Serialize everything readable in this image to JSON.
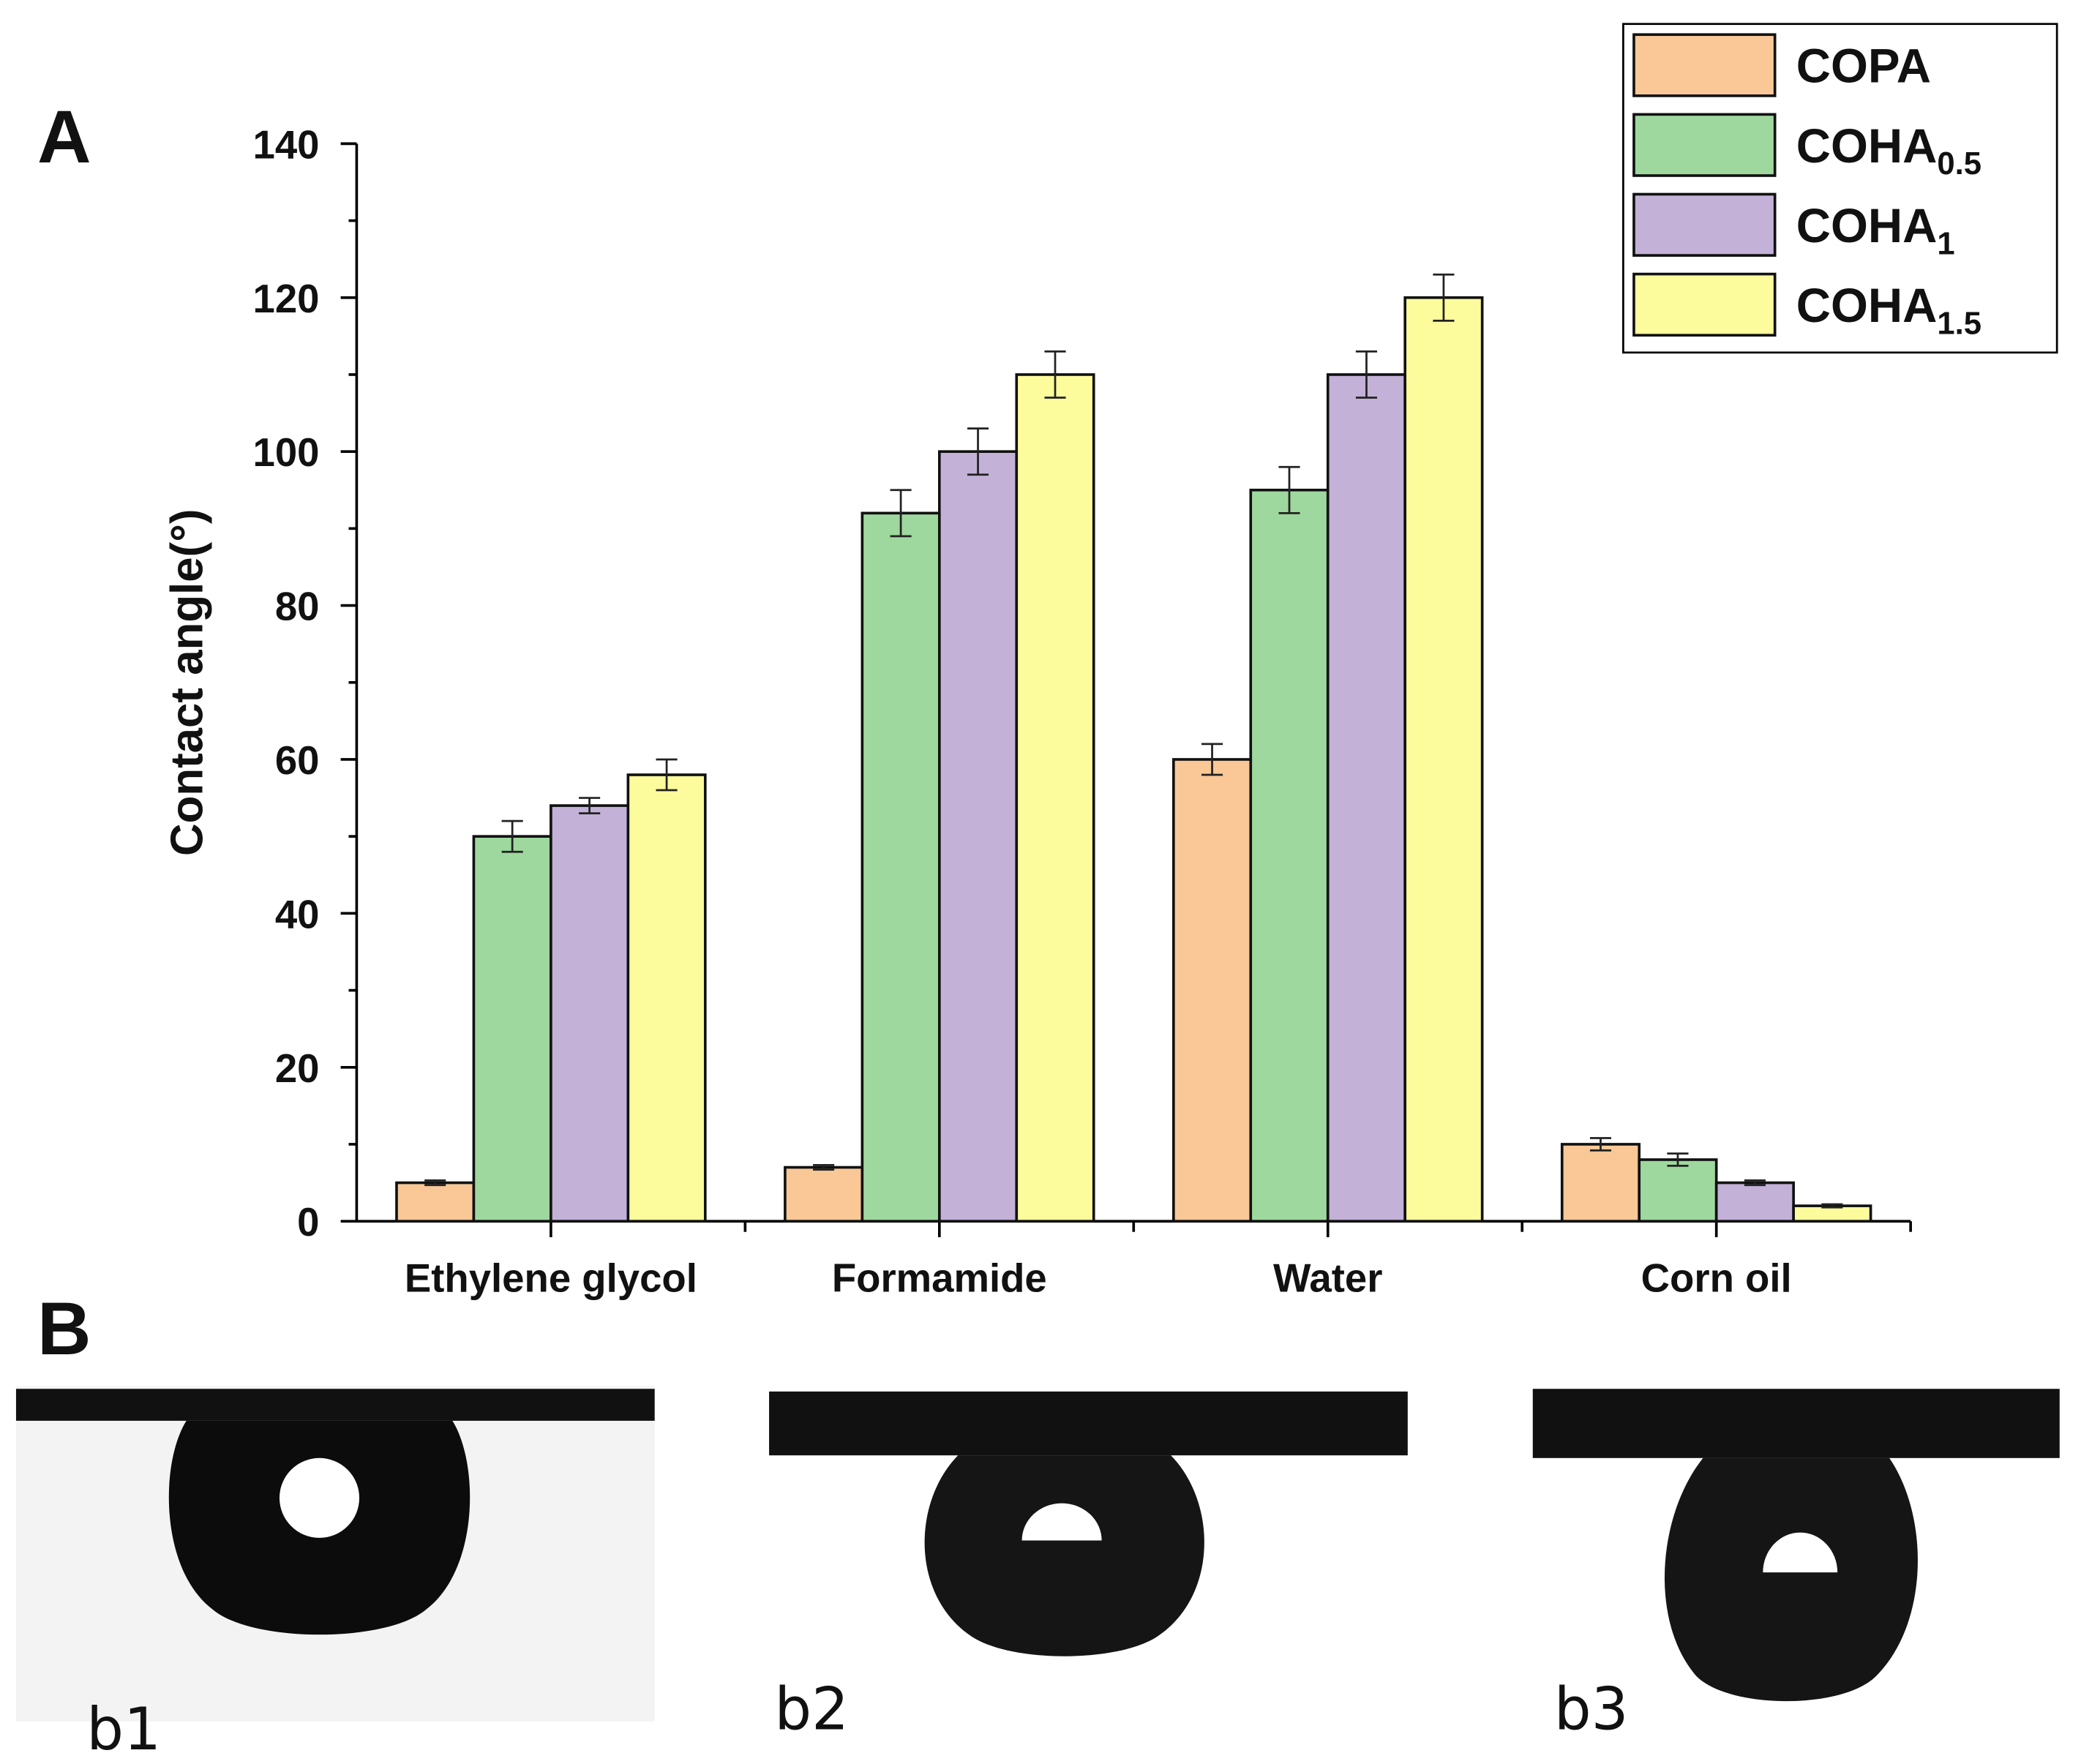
{
  "panel_labels": {
    "a": "A",
    "b": "B"
  },
  "chart_data": {
    "type": "bar",
    "title": "",
    "xlabel": "",
    "ylabel": "Contact angle(°)",
    "ylim": [
      0,
      140
    ],
    "yticks": [
      0,
      20,
      40,
      60,
      80,
      100,
      120,
      140
    ],
    "grid": false,
    "legend_position": "top-right",
    "categories": [
      "Ethylene glycol",
      "Formamide",
      "Water",
      "Corn oil"
    ],
    "series": [
      {
        "name": "COPA",
        "name_base": "COPA",
        "name_sub": "",
        "color": "#f9c896",
        "values": [
          5,
          7,
          60,
          10
        ],
        "errors": [
          0.3,
          0.3,
          2,
          0.8
        ]
      },
      {
        "name": "COHA0.5",
        "name_base": "COHA",
        "name_sub": "0.5",
        "color": "#9ed89e",
        "values": [
          50,
          92,
          95,
          8
        ],
        "errors": [
          2,
          3,
          3,
          0.8
        ]
      },
      {
        "name": "COHA1",
        "name_base": "COHA",
        "name_sub": "1",
        "color": "#c3b1d8",
        "values": [
          54,
          100,
          110,
          5
        ],
        "errors": [
          1,
          3,
          3,
          0.3
        ]
      },
      {
        "name": "COHA1.5",
        "name_base": "COHA",
        "name_sub": "1.5",
        "color": "#fdfc9c",
        "values": [
          58,
          110,
          120,
          2
        ],
        "errors": [
          2,
          3,
          3,
          0.2
        ]
      }
    ]
  },
  "photos": [
    {
      "label": "b1"
    },
    {
      "label": "b2"
    },
    {
      "label": "b3"
    }
  ]
}
